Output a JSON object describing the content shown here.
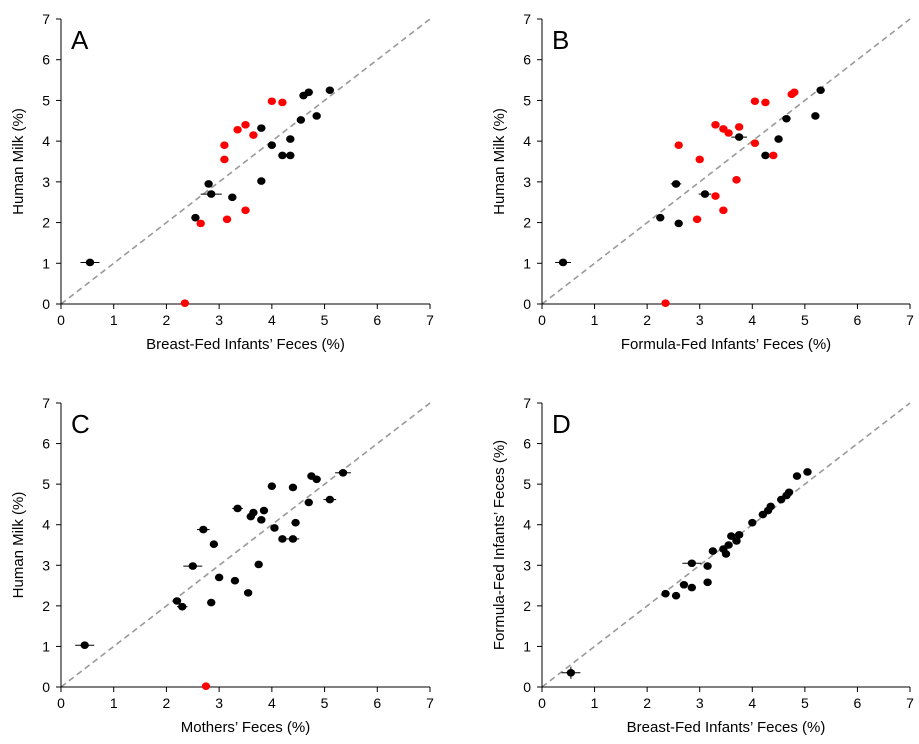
{
  "chart_data": [
    {
      "type": "scatter",
      "panel": "A",
      "xlabel": "Breast-Fed Infants’ Feces (%)",
      "ylabel": "Human Milk (%)",
      "xlim": [
        0,
        7
      ],
      "ylim": [
        0,
        7
      ],
      "xticks": [
        "0",
        "1",
        "2",
        "3",
        "4",
        "5",
        "6",
        "7"
      ],
      "yticks": [
        "0",
        "1",
        "2",
        "3",
        "4",
        "5",
        "6",
        "7"
      ],
      "identity_line": true,
      "grid": false,
      "colors": {
        "black": "#000000",
        "red": "#ff0000",
        "identity": "#999999"
      },
      "series": [
        {
          "color": "black",
          "points": [
            {
              "x": 0.55,
              "y": 1.02,
              "xerr": 0.18
            },
            {
              "x": 2.55,
              "y": 2.12
            },
            {
              "x": 2.8,
              "y": 2.95
            },
            {
              "x": 2.85,
              "y": 2.7,
              "xerr": 0.2
            },
            {
              "x": 3.25,
              "y": 2.62
            },
            {
              "x": 3.8,
              "y": 3.02
            },
            {
              "x": 3.8,
              "y": 4.32
            },
            {
              "x": 4.0,
              "y": 3.9
            },
            {
              "x": 4.2,
              "y": 3.65
            },
            {
              "x": 4.35,
              "y": 3.65
            },
            {
              "x": 4.35,
              "y": 4.05
            },
            {
              "x": 4.55,
              "y": 4.52
            },
            {
              "x": 4.6,
              "y": 5.12
            },
            {
              "x": 4.7,
              "y": 5.2
            },
            {
              "x": 4.85,
              "y": 4.62
            },
            {
              "x": 5.1,
              "y": 5.25
            }
          ]
        },
        {
          "color": "red",
          "points": [
            {
              "x": 2.35,
              "y": 0.02
            },
            {
              "x": 2.65,
              "y": 1.98
            },
            {
              "x": 3.15,
              "y": 2.08
            },
            {
              "x": 3.1,
              "y": 3.55
            },
            {
              "x": 3.1,
              "y": 3.9
            },
            {
              "x": 3.35,
              "y": 4.28
            },
            {
              "x": 3.5,
              "y": 4.4
            },
            {
              "x": 3.5,
              "y": 2.3
            },
            {
              "x": 3.65,
              "y": 4.15
            },
            {
              "x": 4.0,
              "y": 4.98
            },
            {
              "x": 4.2,
              "y": 4.95
            }
          ]
        }
      ]
    },
    {
      "type": "scatter",
      "panel": "B",
      "xlabel": "Formula-Fed Infants’ Feces (%)",
      "ylabel": "Human Milk (%)",
      "xlim": [
        0,
        7
      ],
      "ylim": [
        0,
        7
      ],
      "xticks": [
        "0",
        "1",
        "2",
        "3",
        "4",
        "5",
        "6",
        "7"
      ],
      "yticks": [
        "0",
        "1",
        "2",
        "3",
        "4",
        "5",
        "6",
        "7"
      ],
      "identity_line": true,
      "grid": false,
      "colors": {
        "black": "#000000",
        "red": "#ff0000",
        "identity": "#999999"
      },
      "series": [
        {
          "color": "black",
          "points": [
            {
              "x": 0.4,
              "y": 1.02,
              "xerr": 0.15
            },
            {
              "x": 2.25,
              "y": 2.12
            },
            {
              "x": 2.55,
              "y": 2.95,
              "xerr": 0.1
            },
            {
              "x": 2.6,
              "y": 1.98
            },
            {
              "x": 3.1,
              "y": 2.7,
              "xerr": 0.12
            },
            {
              "x": 3.75,
              "y": 4.1,
              "xerr": 0.15
            },
            {
              "x": 4.25,
              "y": 3.65
            },
            {
              "x": 4.5,
              "y": 4.05
            },
            {
              "x": 4.65,
              "y": 4.55
            },
            {
              "x": 5.2,
              "y": 4.62
            },
            {
              "x": 5.3,
              "y": 5.25
            }
          ]
        },
        {
          "color": "red",
          "points": [
            {
              "x": 2.35,
              "y": 0.02
            },
            {
              "x": 2.6,
              "y": 3.9
            },
            {
              "x": 2.95,
              "y": 2.08
            },
            {
              "x": 3.0,
              "y": 3.55
            },
            {
              "x": 3.3,
              "y": 2.65
            },
            {
              "x": 3.3,
              "y": 4.4
            },
            {
              "x": 3.45,
              "y": 4.3
            },
            {
              "x": 3.55,
              "y": 4.2
            },
            {
              "x": 3.45,
              "y": 2.3
            },
            {
              "x": 3.7,
              "y": 3.05
            },
            {
              "x": 3.75,
              "y": 4.35
            },
            {
              "x": 4.05,
              "y": 3.95
            },
            {
              "x": 4.05,
              "y": 4.98
            },
            {
              "x": 4.25,
              "y": 4.95
            },
            {
              "x": 4.4,
              "y": 3.65
            },
            {
              "x": 4.75,
              "y": 5.15
            },
            {
              "x": 4.8,
              "y": 5.2
            }
          ]
        }
      ]
    },
    {
      "type": "scatter",
      "panel": "C",
      "xlabel": "Mothers’ Feces (%)",
      "ylabel": "Human Milk (%)",
      "xlim": [
        0,
        7
      ],
      "ylim": [
        0,
        7
      ],
      "xticks": [
        "0",
        "1",
        "2",
        "3",
        "4",
        "5",
        "6",
        "7"
      ],
      "yticks": [
        "0",
        "1",
        "2",
        "3",
        "4",
        "5",
        "6",
        "7"
      ],
      "identity_line": true,
      "grid": false,
      "colors": {
        "black": "#000000",
        "red": "#ff0000",
        "identity": "#999999"
      },
      "series": [
        {
          "color": "black",
          "points": [
            {
              "x": 0.45,
              "y": 1.03,
              "xerr": 0.18
            },
            {
              "x": 2.2,
              "y": 2.12,
              "xerr": 0.08
            },
            {
              "x": 2.3,
              "y": 1.98,
              "xerr": 0.1
            },
            {
              "x": 2.5,
              "y": 2.98,
              "xerr": 0.18
            },
            {
              "x": 2.7,
              "y": 3.88,
              "xerr": 0.12
            },
            {
              "x": 2.85,
              "y": 2.08
            },
            {
              "x": 2.9,
              "y": 3.52
            },
            {
              "x": 3.0,
              "y": 2.7
            },
            {
              "x": 3.3,
              "y": 2.62
            },
            {
              "x": 3.35,
              "y": 4.4,
              "xerr": 0.1
            },
            {
              "x": 3.55,
              "y": 2.32
            },
            {
              "x": 3.6,
              "y": 4.2
            },
            {
              "x": 3.65,
              "y": 4.3
            },
            {
              "x": 3.75,
              "y": 3.02
            },
            {
              "x": 3.8,
              "y": 4.12
            },
            {
              "x": 3.85,
              "y": 4.35
            },
            {
              "x": 4.0,
              "y": 4.95
            },
            {
              "x": 4.05,
              "y": 3.92
            },
            {
              "x": 4.2,
              "y": 3.65
            },
            {
              "x": 4.4,
              "y": 3.65,
              "xerr": 0.12
            },
            {
              "x": 4.45,
              "y": 4.05
            },
            {
              "x": 4.4,
              "y": 4.92
            },
            {
              "x": 4.7,
              "y": 4.55
            },
            {
              "x": 4.75,
              "y": 5.2
            },
            {
              "x": 4.85,
              "y": 5.12
            },
            {
              "x": 5.1,
              "y": 4.62,
              "xerr": 0.12
            },
            {
              "x": 5.35,
              "y": 5.28,
              "xerr": 0.15
            }
          ]
        },
        {
          "color": "red",
          "points": [
            {
              "x": 2.75,
              "y": 0.02
            }
          ]
        }
      ]
    },
    {
      "type": "scatter",
      "panel": "D",
      "xlabel": "Breast-Fed Infants’ Feces (%)",
      "ylabel": "Formula-Fed Infants’ Feces (%)",
      "xlim": [
        0,
        7
      ],
      "ylim": [
        0,
        7
      ],
      "xticks": [
        "0",
        "1",
        "2",
        "3",
        "4",
        "5",
        "6",
        "7"
      ],
      "yticks": [
        "0",
        "1",
        "2",
        "3",
        "4",
        "5",
        "6",
        "7"
      ],
      "identity_line": true,
      "grid": false,
      "colors": {
        "black": "#000000",
        "identity": "#999999"
      },
      "series": [
        {
          "color": "black",
          "points": [
            {
              "x": 0.55,
              "y": 0.35,
              "xerr": 0.18,
              "yerr": 0.15
            },
            {
              "x": 2.35,
              "y": 2.3
            },
            {
              "x": 2.55,
              "y": 2.25
            },
            {
              "x": 2.7,
              "y": 2.52
            },
            {
              "x": 2.85,
              "y": 2.45
            },
            {
              "x": 2.85,
              "y": 3.05,
              "xerr": 0.18
            },
            {
              "x": 3.15,
              "y": 2.58
            },
            {
              "x": 3.15,
              "y": 2.98
            },
            {
              "x": 3.25,
              "y": 3.35
            },
            {
              "x": 3.45,
              "y": 3.4
            },
            {
              "x": 3.5,
              "y": 3.28
            },
            {
              "x": 3.55,
              "y": 3.5
            },
            {
              "x": 3.6,
              "y": 3.72
            },
            {
              "x": 3.7,
              "y": 3.6
            },
            {
              "x": 3.75,
              "y": 3.75
            },
            {
              "x": 4.0,
              "y": 4.05
            },
            {
              "x": 4.2,
              "y": 4.25
            },
            {
              "x": 4.3,
              "y": 4.35
            },
            {
              "x": 4.35,
              "y": 4.45
            },
            {
              "x": 4.55,
              "y": 4.62
            },
            {
              "x": 4.65,
              "y": 4.72
            },
            {
              "x": 4.7,
              "y": 4.8
            },
            {
              "x": 4.85,
              "y": 5.2
            },
            {
              "x": 5.05,
              "y": 5.3
            }
          ]
        }
      ]
    }
  ]
}
